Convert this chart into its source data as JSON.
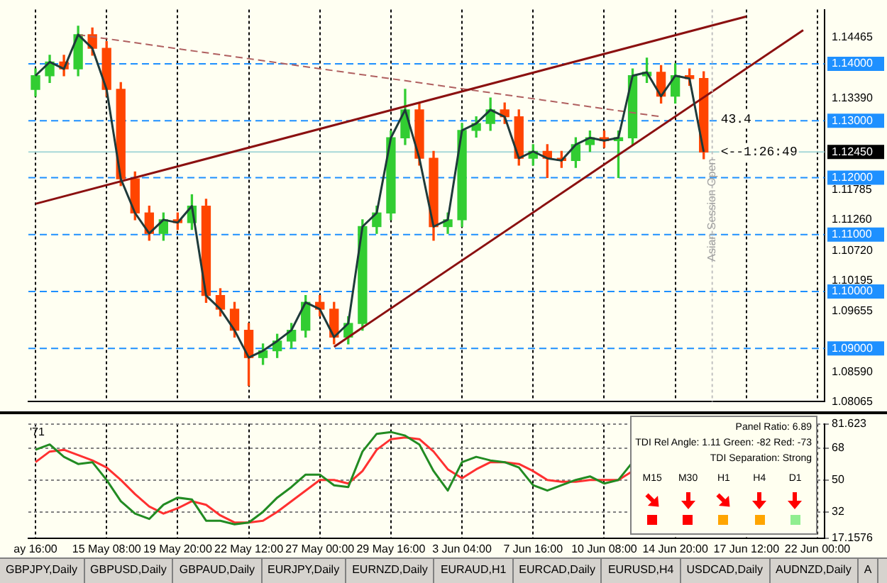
{
  "chart_data": [
    {
      "type": "candlestick",
      "categories": [
        null,
        null,
        null,
        null,
        null,
        null,
        null,
        null,
        null,
        null,
        null,
        null,
        null,
        null,
        null,
        null,
        null,
        null,
        null,
        null,
        null,
        null,
        null,
        null,
        null,
        null,
        null,
        null,
        null,
        null,
        null,
        null,
        null,
        null,
        null,
        null,
        null,
        null,
        null,
        null,
        null,
        null,
        null,
        null,
        null,
        null,
        null,
        null,
        null,
        null,
        null,
        null,
        null,
        null,
        null,
        null
      ],
      "ohlc": [
        [
          1.1355,
          1.1391,
          1.1343,
          1.1379
        ],
        [
          1.1379,
          1.1415,
          1.1367,
          1.1403
        ],
        [
          1.1403,
          1.1415,
          1.1379,
          1.1391
        ],
        [
          1.1391,
          1.1466,
          1.1379,
          1.1451
        ],
        [
          1.1451,
          1.1463,
          1.1415,
          1.1427
        ],
        [
          1.1427,
          1.1439,
          1.1343,
          1.1355
        ],
        [
          1.1355,
          1.1367,
          1.1186,
          1.1198
        ],
        [
          1.1198,
          1.121,
          1.1126,
          1.1138
        ],
        [
          1.1138,
          1.115,
          1.109,
          1.1102
        ],
        [
          1.1102,
          1.1138,
          1.109,
          1.1126
        ],
        [
          1.1126,
          1.1138,
          1.1109,
          1.1121
        ],
        [
          1.1121,
          1.117,
          1.1109,
          1.115
        ],
        [
          1.115,
          1.1162,
          1.0981,
          1.0993
        ],
        [
          1.0993,
          1.1005,
          1.0957,
          1.0969
        ],
        [
          1.0969,
          1.0981,
          1.092,
          1.0932
        ],
        [
          1.0932,
          1.0944,
          1.0835,
          1.0884
        ],
        [
          1.0884,
          1.0908,
          1.0872,
          1.0896
        ],
        [
          1.0896,
          1.0925,
          1.0884,
          1.0913
        ],
        [
          1.0913,
          1.0944,
          1.0901,
          1.0932
        ],
        [
          1.0932,
          1.0993,
          1.092,
          1.0981
        ],
        [
          1.0981,
          1.0993,
          1.0957,
          1.0969
        ],
        [
          1.0969,
          1.0981,
          1.0908,
          1.092
        ],
        [
          1.092,
          1.0956,
          1.0908,
          1.0944
        ],
        [
          1.0944,
          1.1126,
          1.0932,
          1.1114
        ],
        [
          1.1114,
          1.115,
          1.1102,
          1.1138
        ],
        [
          1.1138,
          1.1282,
          1.1126,
          1.127
        ],
        [
          1.127,
          1.1355,
          1.1258,
          1.1319
        ],
        [
          1.1319,
          1.1331,
          1.1222,
          1.1234
        ],
        [
          1.1234,
          1.1246,
          1.109,
          1.1114
        ],
        [
          1.1114,
          1.1138,
          1.1102,
          1.1126
        ],
        [
          1.1126,
          1.1295,
          1.1114,
          1.1283
        ],
        [
          1.1283,
          1.1307,
          1.1271,
          1.1295
        ],
        [
          1.1295,
          1.134,
          1.1283,
          1.1319
        ],
        [
          1.1319,
          1.1331,
          1.1295,
          1.1307
        ],
        [
          1.1307,
          1.1319,
          1.1222,
          1.1234
        ],
        [
          1.1234,
          1.1258,
          1.1222,
          1.1246
        ],
        [
          1.1246,
          1.1258,
          1.12,
          1.1234
        ],
        [
          1.1234,
          1.1246,
          1.1218,
          1.123
        ],
        [
          1.123,
          1.127,
          1.1218,
          1.1258
        ],
        [
          1.1258,
          1.1282,
          1.1246,
          1.127
        ],
        [
          1.127,
          1.1282,
          1.1253,
          1.1265
        ],
        [
          1.1265,
          1.1282,
          1.12,
          1.127
        ],
        [
          1.127,
          1.1391,
          1.1258,
          1.1379
        ],
        [
          1.1379,
          1.141,
          1.1367,
          1.1385
        ],
        [
          1.1385,
          1.1397,
          1.1331,
          1.1343
        ],
        [
          1.1343,
          1.14,
          1.1331,
          1.1379
        ],
        [
          1.1379,
          1.1391,
          1.1362,
          1.1374
        ],
        [
          1.1374,
          1.1386,
          1.1233,
          1.1245
        ],
        null,
        null,
        null,
        null,
        null,
        null,
        null,
        null
      ],
      "colors": [
        "#32cd32",
        "#32cd32",
        "#ff4500",
        "#32cd32",
        "#ff4500",
        "#ff4500",
        "#ff4500",
        "#ff4500",
        "#ff4500",
        "#32cd32",
        "#ff4500",
        "#32cd32",
        "#ff4500",
        "#ff4500",
        "#ff4500",
        "#ff4500",
        "#32cd32",
        "#32cd32",
        "#32cd32",
        "#32cd32",
        "#ff4500",
        "#ff4500",
        "#32cd32",
        "#32cd32",
        "#32cd32",
        "#32cd32",
        "#32cd32",
        "#ff4500",
        "#ff4500",
        "#32cd32",
        "#32cd32",
        "#32cd32",
        "#32cd32",
        "#ff4500",
        "#ff4500",
        "#32cd32",
        "#ff4500",
        "#ff4500",
        "#32cd32",
        "#32cd32",
        "#ff4500",
        "#32cd32",
        "#32cd32",
        "#32cd32",
        "#ff4500",
        "#32cd32",
        "#ff4500",
        "#ff4500",
        null,
        null,
        null,
        null,
        null,
        null,
        null,
        null
      ],
      "series": [
        {
          "type": "line",
          "color": "#1f3a3a",
          "values": [
            1.1379,
            1.1403,
            1.1391,
            1.1451,
            1.1427,
            1.1355,
            1.1198,
            1.1138,
            1.1102,
            1.1126,
            1.1121,
            1.115,
            1.0993,
            1.0969,
            1.0932,
            1.0884,
            1.0896,
            1.0913,
            1.0932,
            1.0981,
            1.0969,
            1.092,
            1.0944,
            1.1114,
            1.1138,
            1.127,
            1.1319,
            1.1234,
            1.1114,
            1.1126,
            1.1283,
            1.1295,
            1.1319,
            1.1307,
            1.1234,
            1.1246,
            1.1234,
            1.123,
            1.1258,
            1.127,
            1.1265,
            1.127,
            1.1379,
            1.1385,
            1.1343,
            1.1379,
            1.1374,
            1.1245,
            null,
            null,
            null,
            null,
            null,
            null,
            null,
            null
          ]
        },
        {
          "type": "line",
          "color": "#8b1010",
          "values": [
            1.1154,
            null,
            null,
            null,
            null,
            null,
            null,
            null,
            null,
            null,
            null,
            null,
            null,
            null,
            null,
            null,
            null,
            null,
            null,
            null,
            null,
            null,
            null,
            null,
            null,
            null,
            null,
            null,
            null,
            null,
            null,
            null,
            null,
            null,
            null,
            null,
            null,
            null,
            null,
            null,
            null,
            null,
            null,
            null,
            null,
            null,
            null,
            null,
            null,
            null,
            1.1483,
            null,
            null,
            null,
            null,
            null
          ]
        },
        {
          "type": "line",
          "color": "#8b1010",
          "values": [
            null,
            null,
            null,
            null,
            null,
            null,
            null,
            null,
            null,
            null,
            null,
            null,
            null,
            null,
            null,
            null,
            null,
            null,
            null,
            null,
            null,
            1.0903,
            null,
            null,
            null,
            null,
            null,
            null,
            null,
            null,
            null,
            null,
            null,
            null,
            null,
            null,
            null,
            null,
            null,
            null,
            null,
            null,
            null,
            null,
            null,
            null,
            null,
            null,
            null,
            null,
            null,
            null,
            null,
            null,
            1.1459,
            null
          ]
        },
        {
          "type": "line",
          "color": "#b06060",
          "line_style": "dashed",
          "values": [
            null,
            null,
            null,
            1.1451,
            null,
            null,
            null,
            null,
            null,
            null,
            null,
            null,
            null,
            null,
            null,
            null,
            null,
            null,
            null,
            null,
            null,
            null,
            null,
            null,
            null,
            null,
            null,
            null,
            null,
            null,
            null,
            null,
            null,
            null,
            null,
            null,
            null,
            null,
            null,
            null,
            null,
            null,
            null,
            null,
            1.1307,
            null,
            null,
            null,
            null,
            null,
            null,
            null,
            null,
            null,
            null,
            null
          ]
        }
      ],
      "ylim": [
        1.08065,
        1.1495
      ],
      "yticks": [
        {
          "value": 1.14465,
          "label": "1.14465"
        },
        {
          "value": 1.1339,
          "label": "1.13390"
        },
        {
          "value": 1.11785,
          "label": "1.11785"
        },
        {
          "value": 1.1126,
          "label": "1.11260"
        },
        {
          "value": 1.1072,
          "label": "1.10720"
        },
        {
          "value": 1.10195,
          "label": "1.10195"
        },
        {
          "value": 1.09655,
          "label": "1.09655"
        },
        {
          "value": 1.0859,
          "label": "1.08590"
        },
        {
          "value": 1.08065,
          "label": "1.08065"
        }
      ],
      "ref_lines": [
        {
          "axis": "y",
          "value": 1.14,
          "label": "1.14000",
          "color": "#1e90ff",
          "line_style": "dashed"
        },
        {
          "axis": "y",
          "value": 1.13,
          "label": "1.13000",
          "color": "#1e90ff",
          "line_style": "dashed"
        },
        {
          "axis": "y",
          "value": 1.12,
          "label": "1.12000",
          "color": "#1e90ff",
          "line_style": "dashed"
        },
        {
          "axis": "y",
          "value": 1.11,
          "label": "1.11000",
          "color": "#1e90ff",
          "line_style": "dashed"
        },
        {
          "axis": "y",
          "value": 1.1,
          "label": "1.10000",
          "color": "#1e90ff",
          "line_style": "dashed"
        },
        {
          "axis": "y",
          "value": 1.09,
          "label": "1.09000",
          "color": "#1e90ff",
          "line_style": "dashed"
        },
        {
          "axis": "y",
          "value": 1.1245,
          "label": "1.12450",
          "color": "#a8d8d8",
          "line_style": "solid"
        }
      ],
      "annotations": [
        {
          "text": "43.4",
          "y": 1.1302
        },
        {
          "text": "<--1:26:49",
          "y": 1.1245
        },
        "Asian Session Open"
      ],
      "grid": "x",
      "tick_labels": "y"
    },
    {
      "type": "line",
      "categories": [
        "ay 16:00",
        null,
        null,
        null,
        null,
        "15 May 08:00",
        null,
        null,
        null,
        null,
        "19 May 20:00",
        null,
        null,
        null,
        null,
        "22 May 12:00",
        null,
        null,
        null,
        null,
        "27 May 00:00",
        null,
        null,
        null,
        null,
        "29 May 16:00",
        null,
        null,
        null,
        null,
        "3 Jun 04:00",
        null,
        null,
        null,
        null,
        "7 Jun 16:00",
        null,
        null,
        null,
        null,
        "10 Jun 08:00",
        null,
        null,
        null,
        null,
        "14 Jun 20:00",
        null,
        null,
        null,
        null,
        "17 Jun 12:00",
        null,
        null,
        null,
        null,
        "22 Jun 00:00"
      ],
      "series": [
        {
          "color": "#228b22",
          "values": [
            67,
            70,
            63,
            59,
            60,
            50,
            38,
            31,
            28,
            36,
            40,
            39,
            27,
            27,
            25,
            26,
            32,
            40,
            46,
            53,
            53,
            47,
            46,
            66,
            76,
            77,
            75,
            70,
            55,
            44,
            60,
            63,
            61,
            60,
            57,
            47,
            44,
            47,
            50,
            52,
            48,
            50,
            60,
            null,
            null,
            null,
            null,
            null,
            null,
            null,
            null,
            null,
            null,
            null,
            null,
            null
          ]
        },
        {
          "color": "#ff3030",
          "values": [
            60,
            66,
            67,
            64,
            61,
            57,
            50,
            42,
            35,
            31,
            34,
            38,
            36,
            30,
            26,
            26,
            27,
            32,
            38,
            44,
            50,
            50,
            48,
            55,
            67,
            73,
            74,
            73,
            66,
            56,
            51,
            56,
            60,
            60,
            59,
            55,
            50,
            49,
            49,
            50,
            50,
            50,
            55,
            null,
            null,
            null,
            null,
            null,
            null,
            null,
            null,
            null,
            null,
            null,
            null,
            null
          ]
        }
      ],
      "ylim": [
        17.1576,
        81.623
      ],
      "yticks": [
        81.623,
        68,
        50,
        32,
        17.1576
      ],
      "grid": true,
      "annotations": [
        "'71"
      ]
    },
    {
      "type": "other",
      "annotations": [
        "Panel Ratio: 6.89",
        "TDI Rel Angle: 1.11 Green: -82 Red: -73",
        "TDI Separation: Strong"
      ],
      "categories": [
        "M15",
        "M30",
        "H1",
        "H4",
        "D1"
      ],
      "colors": [
        "#ff0000",
        "#ff0000",
        "#ffa500",
        "#ffa500",
        "#90ee90"
      ]
    },
    {
      "type": "other",
      "categories": [
        "GBPJPY,Daily",
        "GBPUSD,Daily",
        "GBPAUD,Daily",
        "EURJPY,Daily",
        "EURNZD,Daily",
        "EURAUD,H1",
        "EURCAD,Daily",
        "EURUSD,H4",
        "USDCAD,Daily",
        "AUDNZD,Daily",
        "A"
      ]
    }
  ]
}
